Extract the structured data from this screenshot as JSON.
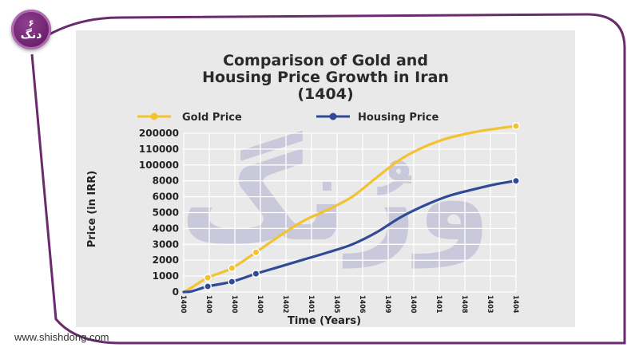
{
  "brand": {
    "badge_top": "۶",
    "badge_bottom": "دنگ",
    "website": "www.shishdong.com",
    "watermark": "ورُنگ"
  },
  "colors": {
    "frame": "#6a2a6e",
    "gold": "#f2c230",
    "housing": "#2f4a96",
    "panel": "#e9e9e9"
  },
  "chart_data": {
    "type": "line",
    "title": "Comparison of Gold and Housing Price Growth in Iran (1404)",
    "title_lines": [
      "Comparison of Gold and",
      "Housing Price Growth in Iran",
      "(1404)"
    ],
    "xlabel": "Time (Years)",
    "ylabel": "Price (in IRR)",
    "legend_position": "top",
    "categories": [
      "1400",
      "1400",
      "1400",
      "1400",
      "1402",
      "1401",
      "1405",
      "1406",
      "1409",
      "1400",
      "1401",
      "1408",
      "1403",
      "1404"
    ],
    "x": [
      0,
      0.35,
      1.0,
      2.0,
      3.0,
      4.0,
      5.0,
      6.0,
      7.0,
      8.0,
      9.0,
      10.0,
      11.0,
      12.0,
      13.0,
      13.8
    ],
    "y_tick_labels": [
      "0",
      "1000",
      "2000",
      "3000",
      "4000",
      "5000",
      "6000",
      "8000",
      "100000",
      "110000",
      "200000"
    ],
    "y_tick_positions": [
      0,
      1,
      2,
      3,
      4,
      5,
      6,
      7,
      8,
      9,
      10
    ],
    "ylim": [
      0,
      10
    ],
    "grid": true,
    "series": [
      {
        "name": "Gold Price",
        "marker_x": [
          1.0,
          2.0,
          3.0,
          13.8
        ],
        "values": [
          0,
          0.3,
          0.9,
          1.5,
          2.5,
          3.55,
          4.5,
          5.2,
          6.0,
          7.2,
          8.35,
          9.15,
          9.7,
          10.05,
          10.3,
          10.45
        ]
      },
      {
        "name": "Housing Price",
        "marker_x": [
          1.0,
          2.0,
          3.0,
          13.8
        ],
        "values": [
          0,
          0.05,
          0.35,
          0.65,
          1.15,
          1.6,
          2.05,
          2.5,
          3.0,
          3.75,
          4.7,
          5.45,
          6.05,
          6.45,
          6.8,
          7.0
        ]
      }
    ]
  }
}
